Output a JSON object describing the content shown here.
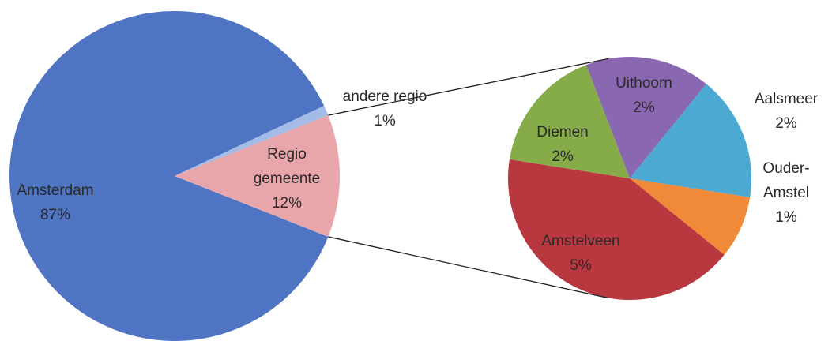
{
  "chart_data": [
    {
      "type": "pie",
      "categories": [
        "Amsterdam",
        "andere regio",
        "Regio gemeente"
      ],
      "values": [
        87,
        1,
        12
      ],
      "value_labels": [
        "87%",
        "1%",
        "12%"
      ],
      "colors": [
        "#4f74c3",
        "#a3bbe6",
        "#e9a6aa"
      ]
    },
    {
      "type": "pie",
      "categories": [
        "Uithoorn",
        "Aalsmeer",
        "Ouder-Amstel",
        "Amstelveen",
        "Diemen"
      ],
      "values": [
        2,
        2,
        1,
        5,
        2
      ],
      "value_labels": [
        "2%",
        "2%",
        "1%",
        "5%",
        "2%"
      ],
      "colors": [
        "#8a68b1",
        "#4ba9d2",
        "#f08a38",
        "#b9383f",
        "#86ab49"
      ]
    }
  ]
}
